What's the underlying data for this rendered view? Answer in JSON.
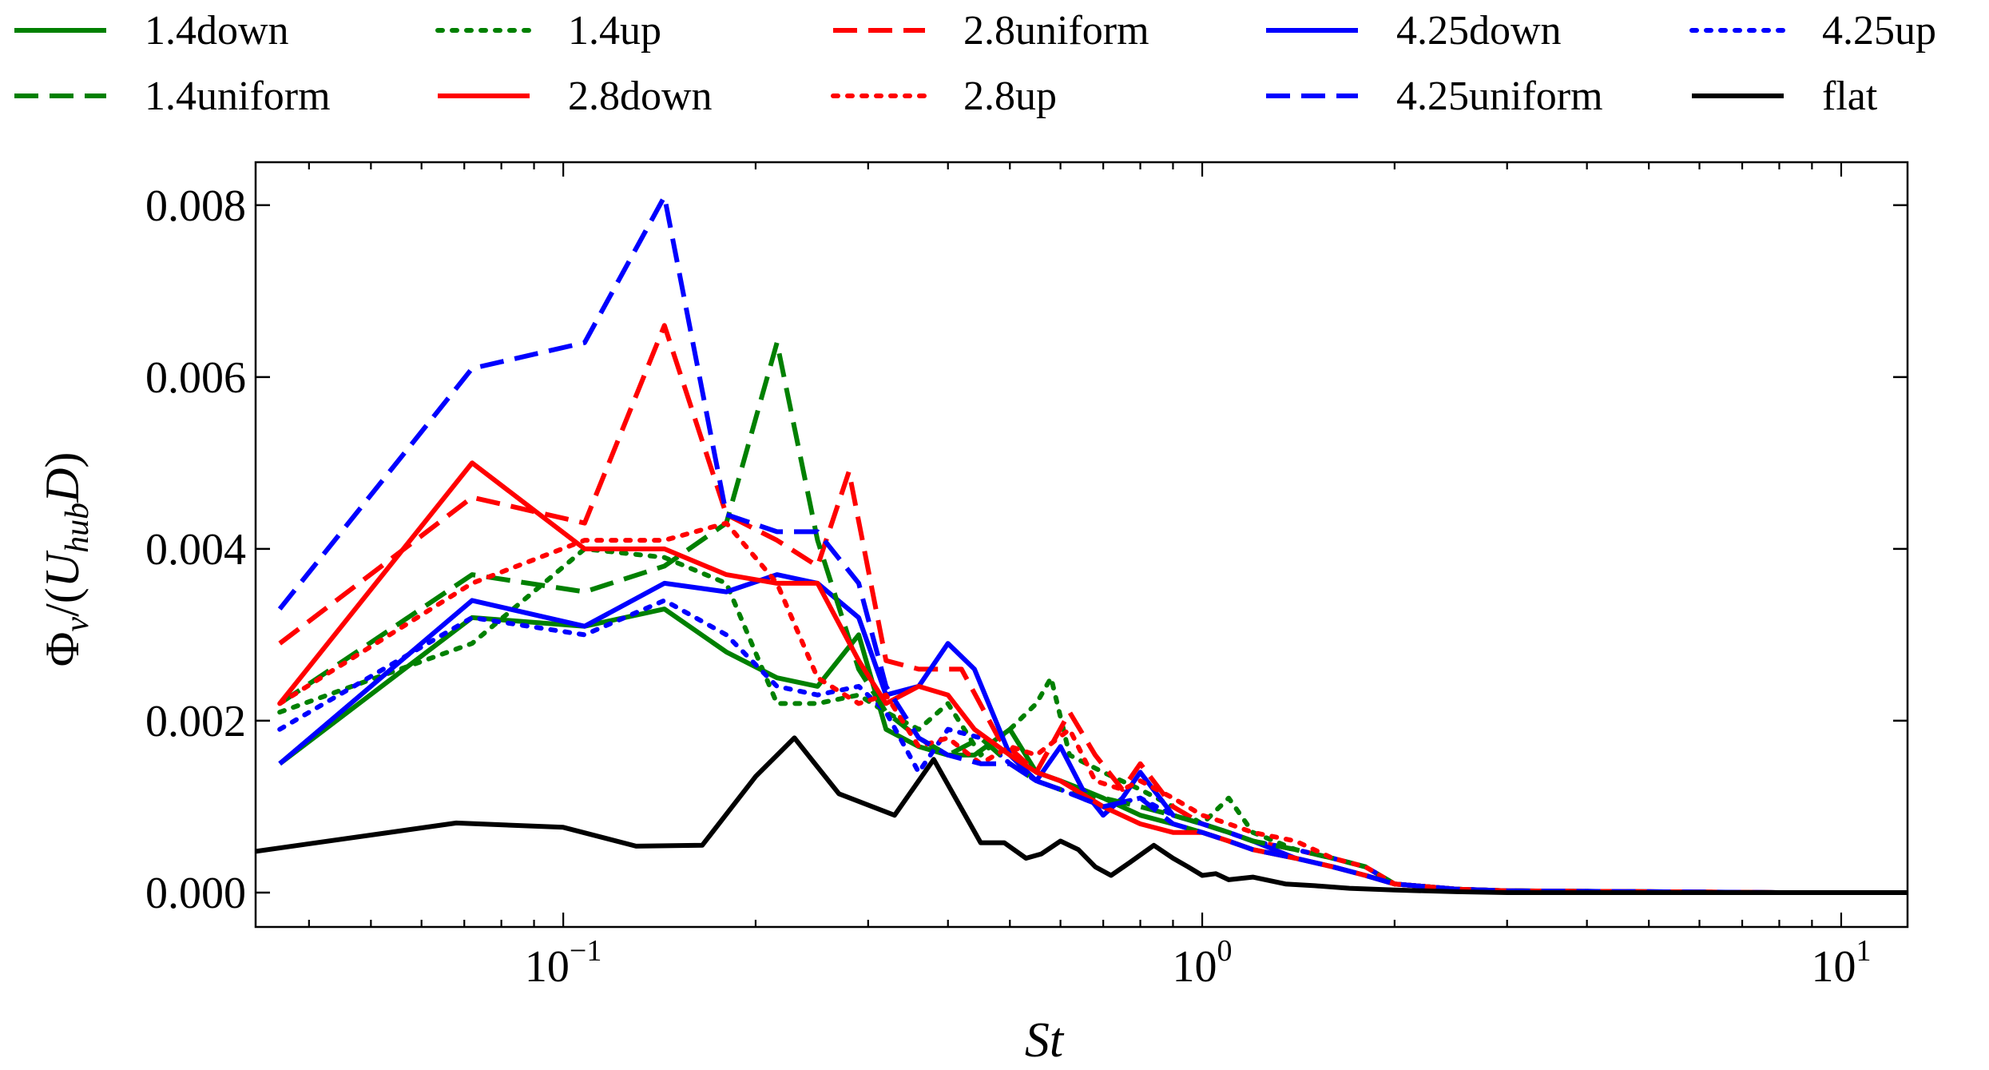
{
  "chart_data": {
    "type": "line",
    "xscale": "log",
    "xlim": [
      0.033,
      12.7
    ],
    "ylim": [
      -0.0004,
      0.0085
    ],
    "xlabel": "St",
    "ylabel": "Φv/(UhubD)",
    "ylabel_parts": {
      "phi": "Φ",
      "v": "v",
      "open": "/(",
      "U": "U",
      "hub": "hub",
      "D": "D",
      "close": ")"
    },
    "xticks": [
      {
        "value": 0.1,
        "base": "10",
        "exp": "−1"
      },
      {
        "value": 1,
        "base": "10",
        "exp": "0"
      },
      {
        "value": 10,
        "base": "10",
        "exp": "1"
      }
    ],
    "yticks": [
      {
        "value": 0.0,
        "label": "0.000"
      },
      {
        "value": 0.002,
        "label": "0.002"
      },
      {
        "value": 0.004,
        "label": "0.004"
      },
      {
        "value": 0.006,
        "label": "0.006"
      },
      {
        "value": 0.008,
        "label": "0.008"
      }
    ],
    "legend_position": "top, above plot, 5 columns",
    "series": [
      {
        "name": "1.4down",
        "color": "#008000",
        "style": "solid",
        "x": [
          0.036,
          0.072,
          0.108,
          0.144,
          0.18,
          0.216,
          0.25,
          0.29,
          0.32,
          0.36,
          0.4,
          0.44,
          0.5,
          0.55,
          0.6,
          0.65,
          0.7,
          0.8,
          0.9,
          1.0,
          1.1,
          1.2,
          1.4,
          1.6,
          1.8,
          2.0,
          2.5,
          3.0,
          5.0,
          8.0,
          12.7
        ],
        "y": [
          0.0015,
          0.0032,
          0.0031,
          0.0033,
          0.0028,
          0.0025,
          0.0024,
          0.003,
          0.0019,
          0.0017,
          0.0016,
          0.0016,
          0.0019,
          0.0014,
          0.0013,
          0.0012,
          0.0011,
          0.0009,
          0.0008,
          0.0007,
          0.0006,
          0.0005,
          0.0004,
          0.0003,
          0.0002,
          0.0001,
          4e-05,
          2e-05,
          1e-05,
          0.0,
          0.0
        ]
      },
      {
        "name": "1.4up",
        "color": "#008000",
        "style": "dotted",
        "x": [
          0.036,
          0.072,
          0.108,
          0.144,
          0.18,
          0.216,
          0.25,
          0.29,
          0.32,
          0.36,
          0.4,
          0.45,
          0.5,
          0.55,
          0.58,
          0.62,
          0.7,
          0.8,
          0.9,
          1.0,
          1.1,
          1.2,
          1.4,
          1.6,
          1.8,
          2.0,
          2.5,
          3.0,
          5.0,
          8.0,
          12.7
        ],
        "y": [
          0.0021,
          0.0029,
          0.004,
          0.0039,
          0.0036,
          0.0022,
          0.0022,
          0.0023,
          0.0021,
          0.0019,
          0.0022,
          0.0016,
          0.0019,
          0.0022,
          0.0025,
          0.0016,
          0.0014,
          0.0012,
          0.001,
          0.0008,
          0.0011,
          0.0007,
          0.0005,
          0.0004,
          0.0003,
          0.0001,
          4e-05,
          2e-05,
          1e-05,
          0.0,
          0.0
        ]
      },
      {
        "name": "2.8uniform",
        "color": "#ff0000",
        "style": "dashed",
        "x": [
          0.036,
          0.072,
          0.108,
          0.144,
          0.18,
          0.216,
          0.25,
          0.28,
          0.32,
          0.36,
          0.42,
          0.48,
          0.55,
          0.62,
          0.68,
          0.75,
          0.8,
          0.9,
          1.0,
          1.1,
          1.2,
          1.4,
          1.6,
          1.8,
          2.0,
          2.5,
          3.0,
          5.0,
          8.0,
          12.7
        ],
        "y": [
          0.0029,
          0.0046,
          0.0043,
          0.0066,
          0.0044,
          0.0041,
          0.0038,
          0.0049,
          0.0027,
          0.0026,
          0.0026,
          0.0018,
          0.0014,
          0.0021,
          0.0016,
          0.0012,
          0.0015,
          0.001,
          0.0008,
          0.0007,
          0.0006,
          0.0005,
          0.0004,
          0.0003,
          0.0001,
          4e-05,
          2e-05,
          1e-05,
          0.0,
          0.0
        ]
      },
      {
        "name": "4.25down",
        "color": "#0000ff",
        "style": "solid",
        "x": [
          0.036,
          0.072,
          0.108,
          0.144,
          0.18,
          0.216,
          0.25,
          0.29,
          0.32,
          0.36,
          0.4,
          0.44,
          0.5,
          0.55,
          0.6,
          0.65,
          0.7,
          0.75,
          0.8,
          0.9,
          1.0,
          1.1,
          1.2,
          1.4,
          1.6,
          1.8,
          2.0,
          2.5,
          3.0,
          5.0,
          8.0,
          12.7
        ],
        "y": [
          0.0015,
          0.0034,
          0.0031,
          0.0036,
          0.0035,
          0.0037,
          0.0036,
          0.0032,
          0.0023,
          0.0024,
          0.0029,
          0.0026,
          0.0016,
          0.0013,
          0.0017,
          0.0012,
          0.0009,
          0.0011,
          0.0014,
          0.0009,
          0.0008,
          0.0007,
          0.0006,
          0.0004,
          0.0003,
          0.0002,
          0.0001,
          4e-05,
          2e-05,
          1e-05,
          0.0,
          0.0
        ]
      },
      {
        "name": "4.25up",
        "color": "#0000ff",
        "style": "dotted",
        "x": [
          0.036,
          0.072,
          0.108,
          0.144,
          0.18,
          0.216,
          0.25,
          0.29,
          0.32,
          0.36,
          0.4,
          0.45,
          0.5,
          0.55,
          0.6,
          0.7,
          0.8,
          0.9,
          1.0,
          1.1,
          1.2,
          1.4,
          1.6,
          1.8,
          2.0,
          2.5,
          3.0,
          5.0,
          8.0,
          12.7
        ],
        "y": [
          0.0019,
          0.0032,
          0.003,
          0.0034,
          0.003,
          0.0024,
          0.0023,
          0.0024,
          0.0021,
          0.0014,
          0.0019,
          0.0018,
          0.0015,
          0.0013,
          0.0012,
          0.001,
          0.0011,
          0.0009,
          0.0008,
          0.0007,
          0.0006,
          0.0005,
          0.0004,
          0.0003,
          0.0001,
          4e-05,
          2e-05,
          1e-05,
          0.0,
          0.0
        ]
      },
      {
        "name": "1.4uniform",
        "color": "#008000",
        "style": "dashed",
        "x": [
          0.036,
          0.072,
          0.108,
          0.144,
          0.18,
          0.216,
          0.25,
          0.29,
          0.32,
          0.36,
          0.4,
          0.45,
          0.5,
          0.55,
          0.6,
          0.7,
          0.8,
          0.9,
          1.0,
          1.1,
          1.2,
          1.4,
          1.6,
          1.8,
          2.0,
          2.5,
          3.0,
          5.0,
          8.0,
          12.7
        ],
        "y": [
          0.0022,
          0.0037,
          0.0035,
          0.0038,
          0.0043,
          0.0064,
          0.0041,
          0.0026,
          0.0021,
          0.0018,
          0.0016,
          0.0018,
          0.0015,
          0.0013,
          0.0012,
          0.0011,
          0.001,
          0.0009,
          0.0008,
          0.0007,
          0.0006,
          0.0005,
          0.0004,
          0.0003,
          0.0001,
          4e-05,
          2e-05,
          1e-05,
          0.0,
          0.0
        ]
      },
      {
        "name": "2.8down",
        "color": "#ff0000",
        "style": "solid",
        "x": [
          0.036,
          0.072,
          0.108,
          0.144,
          0.18,
          0.216,
          0.25,
          0.29,
          0.32,
          0.36,
          0.4,
          0.44,
          0.5,
          0.55,
          0.6,
          0.7,
          0.8,
          0.9,
          1.0,
          1.1,
          1.2,
          1.4,
          1.6,
          1.8,
          2.0,
          2.5,
          3.0,
          5.0,
          8.0,
          12.7
        ],
        "y": [
          0.0022,
          0.005,
          0.004,
          0.004,
          0.0037,
          0.0036,
          0.0036,
          0.0027,
          0.0022,
          0.0024,
          0.0023,
          0.0019,
          0.0016,
          0.0014,
          0.0013,
          0.001,
          0.0008,
          0.0007,
          0.0007,
          0.0006,
          0.0005,
          0.0004,
          0.0003,
          0.0002,
          0.0001,
          4e-05,
          2e-05,
          1e-05,
          0.0,
          0.0
        ]
      },
      {
        "name": "2.8up",
        "color": "#ff0000",
        "style": "dotted",
        "x": [
          0.036,
          0.072,
          0.108,
          0.144,
          0.18,
          0.216,
          0.25,
          0.29,
          0.32,
          0.36,
          0.4,
          0.45,
          0.5,
          0.55,
          0.62,
          0.68,
          0.75,
          0.8,
          0.9,
          1.0,
          1.1,
          1.2,
          1.4,
          1.6,
          1.8,
          2.0,
          2.5,
          3.0,
          5.0,
          8.0,
          12.7
        ],
        "y": [
          0.0022,
          0.0036,
          0.0041,
          0.0041,
          0.0043,
          0.0036,
          0.0025,
          0.0022,
          0.0023,
          0.0017,
          0.0018,
          0.0015,
          0.0017,
          0.0016,
          0.0019,
          0.0013,
          0.0012,
          0.0013,
          0.0011,
          0.0009,
          0.0008,
          0.0007,
          0.0006,
          0.0004,
          0.0003,
          0.0001,
          4e-05,
          2e-05,
          1e-05,
          0.0,
          0.0
        ]
      },
      {
        "name": "4.25uniform",
        "color": "#0000ff",
        "style": "dashed",
        "x": [
          0.036,
          0.072,
          0.108,
          0.144,
          0.18,
          0.216,
          0.25,
          0.29,
          0.32,
          0.36,
          0.4,
          0.45,
          0.5,
          0.55,
          0.6,
          0.7,
          0.8,
          0.9,
          1.0,
          1.1,
          1.2,
          1.4,
          1.6,
          1.8,
          2.0,
          2.5,
          3.0,
          5.0,
          8.0,
          12.7
        ],
        "y": [
          0.0033,
          0.0061,
          0.0064,
          0.0081,
          0.0044,
          0.0042,
          0.0042,
          0.0036,
          0.0024,
          0.0018,
          0.0016,
          0.0015,
          0.0015,
          0.0013,
          0.0012,
          0.001,
          0.0011,
          0.0008,
          0.0007,
          0.0006,
          0.0005,
          0.0004,
          0.0003,
          0.0002,
          0.0001,
          4e-05,
          2e-05,
          1e-05,
          0.0,
          0.0
        ]
      },
      {
        "name": "flat",
        "color": "#000000",
        "style": "solid",
        "x": [
          0.033,
          0.068,
          0.1,
          0.13,
          0.165,
          0.2,
          0.23,
          0.27,
          0.33,
          0.38,
          0.45,
          0.49,
          0.53,
          0.56,
          0.6,
          0.64,
          0.68,
          0.72,
          0.77,
          0.84,
          0.9,
          0.95,
          1.0,
          1.05,
          1.1,
          1.2,
          1.35,
          1.5,
          1.7,
          2.0,
          2.5,
          3.0,
          5.0,
          8.0,
          12.7
        ],
        "y": [
          0.00048,
          0.00081,
          0.00076,
          0.00054,
          0.00055,
          0.00135,
          0.0018,
          0.00115,
          0.0009,
          0.00155,
          0.00058,
          0.00058,
          0.0004,
          0.00045,
          0.0006,
          0.0005,
          0.0003,
          0.0002,
          0.00035,
          0.00055,
          0.0004,
          0.0003,
          0.0002,
          0.00022,
          0.00015,
          0.00018,
          0.0001,
          8e-05,
          5e-05,
          3e-05,
          1e-05,
          0.0,
          0.0,
          0.0,
          0.0
        ]
      }
    ]
  }
}
